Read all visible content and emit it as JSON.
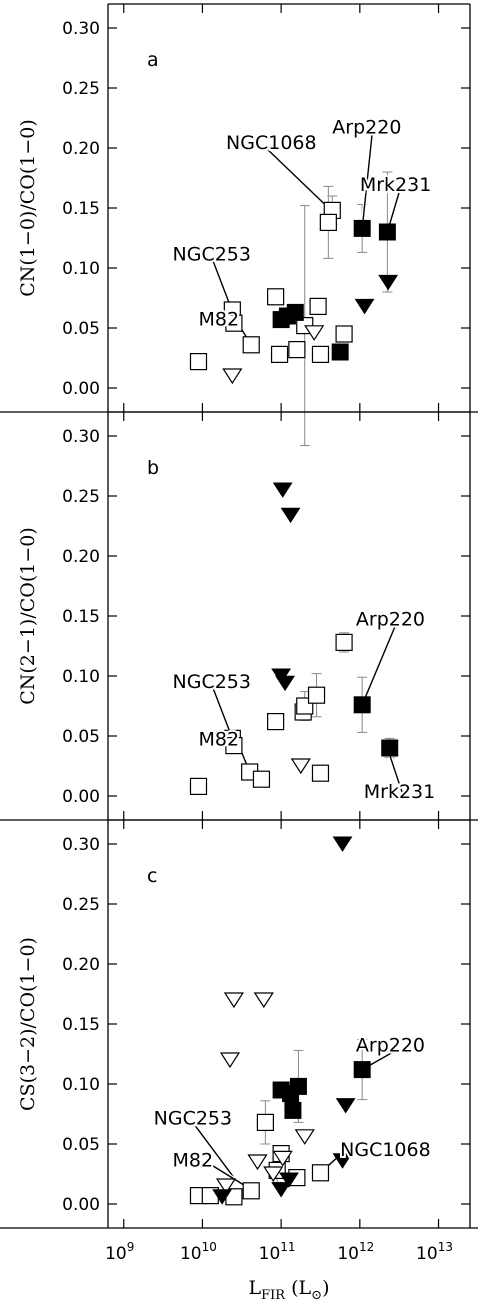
{
  "chart_data": [
    {
      "type": "scatter",
      "panel": "a",
      "ylabel": "CN(1−0)/CO(1−0)",
      "ylim": [
        -0.02,
        0.32
      ],
      "yticks": [
        0.0,
        0.05,
        0.1,
        0.15,
        0.2,
        0.25,
        0.3
      ],
      "ytick_labels": [
        "0.00",
        "0.05",
        "0.10",
        "0.15",
        "0.20",
        "0.25",
        "0.30"
      ],
      "open_squares": [
        {
          "x": 9.95,
          "y": 0.022
        },
        {
          "x": 10.38,
          "y": 0.065
        },
        {
          "x": 10.4,
          "y": 0.054
        },
        {
          "x": 10.62,
          "y": 0.036
        },
        {
          "x": 10.93,
          "y": 0.076
        },
        {
          "x": 10.98,
          "y": 0.028
        },
        {
          "x": 11.2,
          "y": 0.032
        },
        {
          "x": 11.3,
          "y": 0.052,
          "err": 0.1
        },
        {
          "x": 11.47,
          "y": 0.068
        },
        {
          "x": 11.5,
          "y": 0.028
        },
        {
          "x": 11.65,
          "y": 0.148,
          "err": 0.012
        },
        {
          "x": 11.6,
          "y": 0.138,
          "err": 0.03
        },
        {
          "x": 11.8,
          "y": 0.045
        }
      ],
      "filled_squares": [
        {
          "x": 11.0,
          "y": 0.057
        },
        {
          "x": 11.08,
          "y": 0.06
        },
        {
          "x": 11.18,
          "y": 0.063
        },
        {
          "x": 11.75,
          "y": 0.03
        },
        {
          "x": 12.03,
          "y": 0.133,
          "err": 0.02
        },
        {
          "x": 12.35,
          "y": 0.13,
          "err": 0.05
        }
      ],
      "open_triangles": [
        {
          "x": 10.38,
          "y": 0.01
        },
        {
          "x": 11.42,
          "y": 0.046
        }
      ],
      "filled_triangles": [
        {
          "x": 12.06,
          "y": 0.068
        },
        {
          "x": 12.36,
          "y": 0.088
        }
      ],
      "annotations": [
        {
          "text": "NGC1068",
          "tx": 10.3,
          "ty": 0.205,
          "px": 11.62,
          "py": 0.149
        },
        {
          "text": "Arp220",
          "tx": 11.65,
          "ty": 0.218,
          "px": 12.03,
          "py": 0.133
        },
        {
          "text": "Mrk231",
          "tx": 12.0,
          "ty": 0.17,
          "px": 12.35,
          "py": 0.13
        },
        {
          "text": "NGC253",
          "tx": 9.62,
          "ty": 0.112,
          "px": 10.38,
          "py": 0.064
        },
        {
          "text": "M82",
          "tx": 9.95,
          "ty": 0.058,
          "px": 10.62,
          "py": 0.036
        }
      ]
    },
    {
      "type": "scatter",
      "panel": "b",
      "ylabel": "CN(2−1)/CO(1−0)",
      "ylim": [
        -0.02,
        0.32
      ],
      "yticks": [
        0.0,
        0.05,
        0.1,
        0.15,
        0.2,
        0.25,
        0.3
      ],
      "ytick_labels": [
        "0.00",
        "0.05",
        "0.10",
        "0.15",
        "0.20",
        "0.25",
        "0.30"
      ],
      "open_squares": [
        {
          "x": 9.95,
          "y": 0.008
        },
        {
          "x": 10.38,
          "y": 0.048
        },
        {
          "x": 10.4,
          "y": 0.042
        },
        {
          "x": 10.6,
          "y": 0.02
        },
        {
          "x": 10.75,
          "y": 0.014
        },
        {
          "x": 10.93,
          "y": 0.062
        },
        {
          "x": 11.28,
          "y": 0.07
        },
        {
          "x": 11.3,
          "y": 0.075,
          "err": 0.012
        },
        {
          "x": 11.45,
          "y": 0.084,
          "err": 0.018
        },
        {
          "x": 11.5,
          "y": 0.019
        },
        {
          "x": 11.8,
          "y": 0.128,
          "err": 0.008
        }
      ],
      "filled_squares": [
        {
          "x": 12.03,
          "y": 0.076,
          "err": 0.023
        },
        {
          "x": 12.38,
          "y": 0.04,
          "err": 0.008
        }
      ],
      "open_triangles": [
        {
          "x": 11.25,
          "y": 0.025
        }
      ],
      "filled_triangles": [
        {
          "x": 11.02,
          "y": 0.255
        },
        {
          "x": 11.12,
          "y": 0.234
        },
        {
          "x": 11.0,
          "y": 0.1
        },
        {
          "x": 11.05,
          "y": 0.094
        }
      ],
      "annotations": [
        {
          "text": "Arp220",
          "tx": 11.95,
          "ty": 0.148,
          "px": 12.03,
          "py": 0.076
        },
        {
          "text": "NGC253",
          "tx": 9.62,
          "ty": 0.096,
          "px": 10.38,
          "py": 0.048
        },
        {
          "text": "M82",
          "tx": 9.95,
          "ty": 0.048,
          "px": 10.6,
          "py": 0.02
        },
        {
          "text": "Mrk231",
          "tx": 12.05,
          "ty": 0.004,
          "px": 12.35,
          "py": 0.04
        }
      ]
    },
    {
      "type": "scatter",
      "panel": "c",
      "ylabel": "CS(3−2)/CO(1−0)",
      "xlabel": "L_FIR (L_⊙)",
      "xlim": [
        8.8,
        13.4
      ],
      "ylim": [
        -0.02,
        0.32
      ],
      "yticks": [
        0.0,
        0.05,
        0.1,
        0.15,
        0.2,
        0.25,
        0.3
      ],
      "ytick_labels": [
        "0.00",
        "0.05",
        "0.10",
        "0.15",
        "0.20",
        "0.25",
        "0.30"
      ],
      "xticks": [
        9,
        10,
        11,
        12,
        13
      ],
      "open_squares": [
        {
          "x": 9.95,
          "y": 0.007
        },
        {
          "x": 10.1,
          "y": 0.007
        },
        {
          "x": 10.4,
          "y": 0.006
        },
        {
          "x": 10.62,
          "y": 0.011
        },
        {
          "x": 10.8,
          "y": 0.068,
          "err": 0.018
        },
        {
          "x": 10.95,
          "y": 0.028,
          "err": 0.01
        },
        {
          "x": 11.0,
          "y": 0.042
        },
        {
          "x": 11.2,
          "y": 0.022
        },
        {
          "x": 11.5,
          "y": 0.026
        }
      ],
      "filled_squares": [
        {
          "x": 11.0,
          "y": 0.095
        },
        {
          "x": 11.12,
          "y": 0.092
        },
        {
          "x": 11.22,
          "y": 0.098,
          "err": 0.03
        },
        {
          "x": 11.15,
          "y": 0.078
        },
        {
          "x": 12.03,
          "y": 0.112,
          "err": 0.025
        }
      ],
      "open_triangles": [
        {
          "x": 10.4,
          "y": 0.17
        },
        {
          "x": 10.78,
          "y": 0.17
        },
        {
          "x": 10.35,
          "y": 0.12
        },
        {
          "x": 11.3,
          "y": 0.056
        },
        {
          "x": 10.7,
          "y": 0.035
        },
        {
          "x": 10.9,
          "y": 0.025
        },
        {
          "x": 11.02,
          "y": 0.038
        },
        {
          "x": 10.3,
          "y": 0.015
        }
      ],
      "filled_triangles": [
        {
          "x": 11.78,
          "y": 0.3
        },
        {
          "x": 11.82,
          "y": 0.082
        },
        {
          "x": 11.78,
          "y": 0.036
        },
        {
          "x": 11.0,
          "y": 0.012
        },
        {
          "x": 11.1,
          "y": 0.02
        },
        {
          "x": 10.25,
          "y": 0.006
        }
      ],
      "annotations": [
        {
          "text": "Arp220",
          "tx": 11.95,
          "ty": 0.133,
          "px": 12.03,
          "py": 0.112
        },
        {
          "text": "NGC253",
          "tx": 9.38,
          "ty": 0.072,
          "px": 10.4,
          "py": 0.022
        },
        {
          "text": "M82",
          "tx": 9.62,
          "ty": 0.037,
          "px": 10.62,
          "py": 0.012
        },
        {
          "text": "NGC1068",
          "tx": 11.75,
          "ty": 0.046,
          "px": 11.5,
          "py": 0.026
        }
      ]
    }
  ]
}
